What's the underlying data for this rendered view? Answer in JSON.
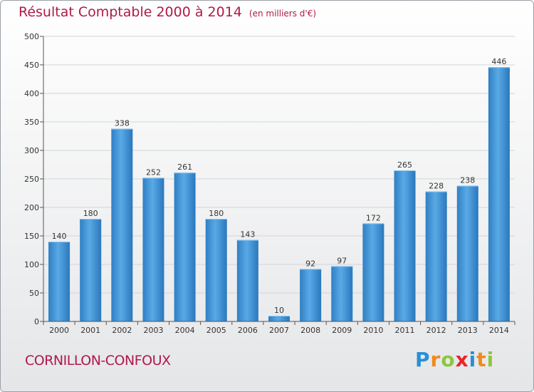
{
  "chart_data": {
    "type": "bar",
    "title": "Résultat Comptable 2000 à 2014",
    "subtitle": "(en milliers d'€)",
    "categories": [
      "2000",
      "2001",
      "2002",
      "2003",
      "2004",
      "2005",
      "2006",
      "2007",
      "2008",
      "2009",
      "2010",
      "2011",
      "2012",
      "2013",
      "2014"
    ],
    "values": [
      140,
      180,
      338,
      252,
      261,
      180,
      143,
      10,
      92,
      97,
      172,
      265,
      228,
      238,
      446
    ],
    "ylim": [
      0,
      500
    ],
    "yticks": [
      0,
      50,
      100,
      150,
      200,
      250,
      300,
      350,
      400,
      450,
      500
    ],
    "xlabel": "",
    "ylabel": "",
    "grid": true,
    "bar_color": "#3d8fd6"
  },
  "footer": {
    "commune": "CORNILLON-CONFOUX",
    "logo_letters": [
      {
        "ch": "P",
        "color": "#2a8fd6"
      },
      {
        "ch": "r",
        "color": "#f08a1c"
      },
      {
        "ch": "o",
        "color": "#8cc63f"
      },
      {
        "ch": "x",
        "color": "#e8252a"
      },
      {
        "ch": "i",
        "color": "#2a8fd6"
      },
      {
        "ch": "t",
        "color": "#f08a1c"
      },
      {
        "ch": "i",
        "color": "#8cc63f"
      }
    ]
  }
}
